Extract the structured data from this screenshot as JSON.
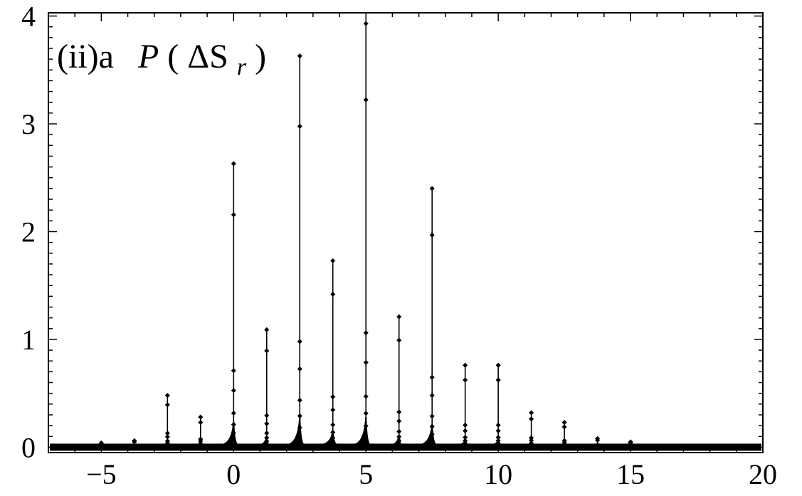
{
  "chart_data": {
    "type": "line",
    "title": {
      "prefix": "(ii)a",
      "func": "P",
      "open": "(",
      "delta": "ΔS",
      "sub": "r",
      "close": ")"
    },
    "xlabel": "",
    "ylabel": "",
    "xlim": [
      -7,
      20
    ],
    "ylim": [
      -0.05,
      4.03
    ],
    "xticks": [
      -5,
      0,
      5,
      10,
      15,
      20
    ],
    "xtick_labels": [
      "−5",
      "0",
      "5",
      "10",
      "15",
      "20"
    ],
    "yticks": [
      0,
      1,
      2,
      3,
      4
    ],
    "ytick_labels": [
      "0",
      "1",
      "2",
      "3",
      "4"
    ],
    "grid": false,
    "baseline": 0.0,
    "peaks": [
      {
        "x": -5.0,
        "y": 0.04
      },
      {
        "x": -3.75,
        "y": 0.06
      },
      {
        "x": -2.5,
        "y": 0.48
      },
      {
        "x": -1.25,
        "y": 0.28
      },
      {
        "x": 0.0,
        "y": 2.63
      },
      {
        "x": 1.25,
        "y": 1.09
      },
      {
        "x": 2.5,
        "y": 3.63
      },
      {
        "x": 3.75,
        "y": 1.73
      },
      {
        "x": 5.0,
        "y": 3.93
      },
      {
        "x": 6.25,
        "y": 1.21
      },
      {
        "x": 7.5,
        "y": 2.4
      },
      {
        "x": 8.75,
        "y": 0.76
      },
      {
        "x": 10.0,
        "y": 0.76
      },
      {
        "x": 11.25,
        "y": 0.32
      },
      {
        "x": 12.5,
        "y": 0.23
      },
      {
        "x": 13.75,
        "y": 0.08
      },
      {
        "x": 15.0,
        "y": 0.05
      }
    ]
  }
}
